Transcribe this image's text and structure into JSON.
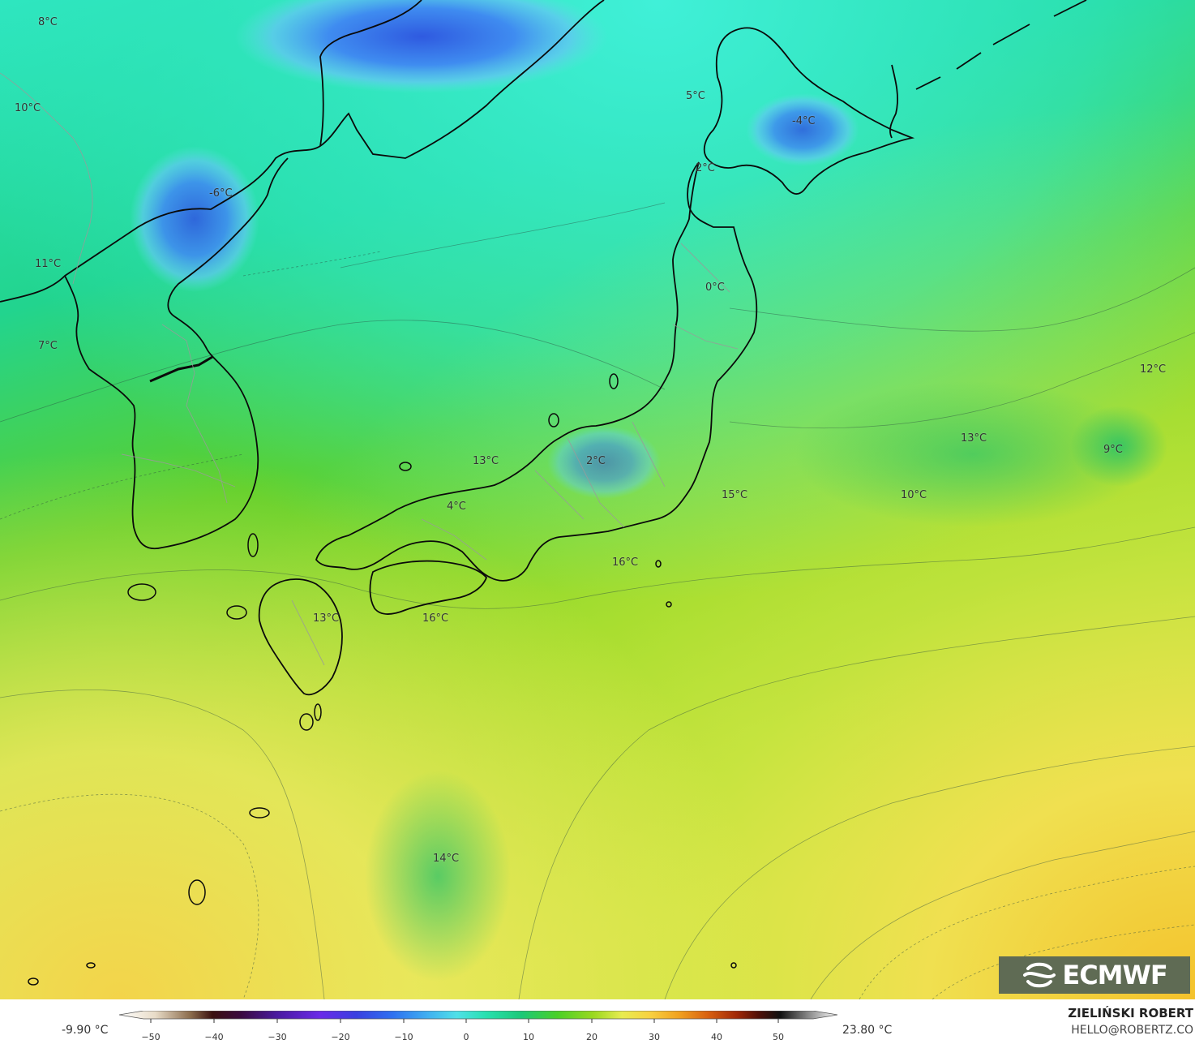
{
  "map": {
    "labels": [
      {
        "text": "8°C"
      },
      {
        "text": "10°C"
      },
      {
        "text": "-6°C"
      },
      {
        "text": "11°C"
      },
      {
        "text": "7°C"
      },
      {
        "text": "5°C"
      },
      {
        "text": "-4°C"
      },
      {
        "text": "2°C"
      },
      {
        "text": "0°C"
      },
      {
        "text": "12°C"
      },
      {
        "text": "13°C"
      },
      {
        "text": "9°C"
      },
      {
        "text": "13°C"
      },
      {
        "text": "2°C"
      },
      {
        "text": "15°C"
      },
      {
        "text": "10°C"
      },
      {
        "text": "4°C"
      },
      {
        "text": "16°C"
      },
      {
        "text": "13°C"
      },
      {
        "text": "16°C"
      },
      {
        "text": "14°C"
      }
    ],
    "colors": {
      "cold": "#2e6ee8",
      "teal": "#2fe0b8",
      "green": "#6ad22a",
      "lime": "#a8e030",
      "yellow": "#f2ee60",
      "orange": "#f5c030"
    }
  },
  "logo": {
    "text": "ECMWF",
    "icon": "ecmwf-swirl-icon"
  },
  "legend": {
    "min_label": "-9.90 °C",
    "max_label": "23.80 °C",
    "ticks": [
      "−50",
      "−40",
      "−30",
      "−20",
      "−10",
      "0",
      "10",
      "20",
      "30",
      "40",
      "50"
    ]
  },
  "author": {
    "name": "ZIELIŃSKI ROBERT",
    "email": "HELLO@ROBERTZ.CO"
  }
}
